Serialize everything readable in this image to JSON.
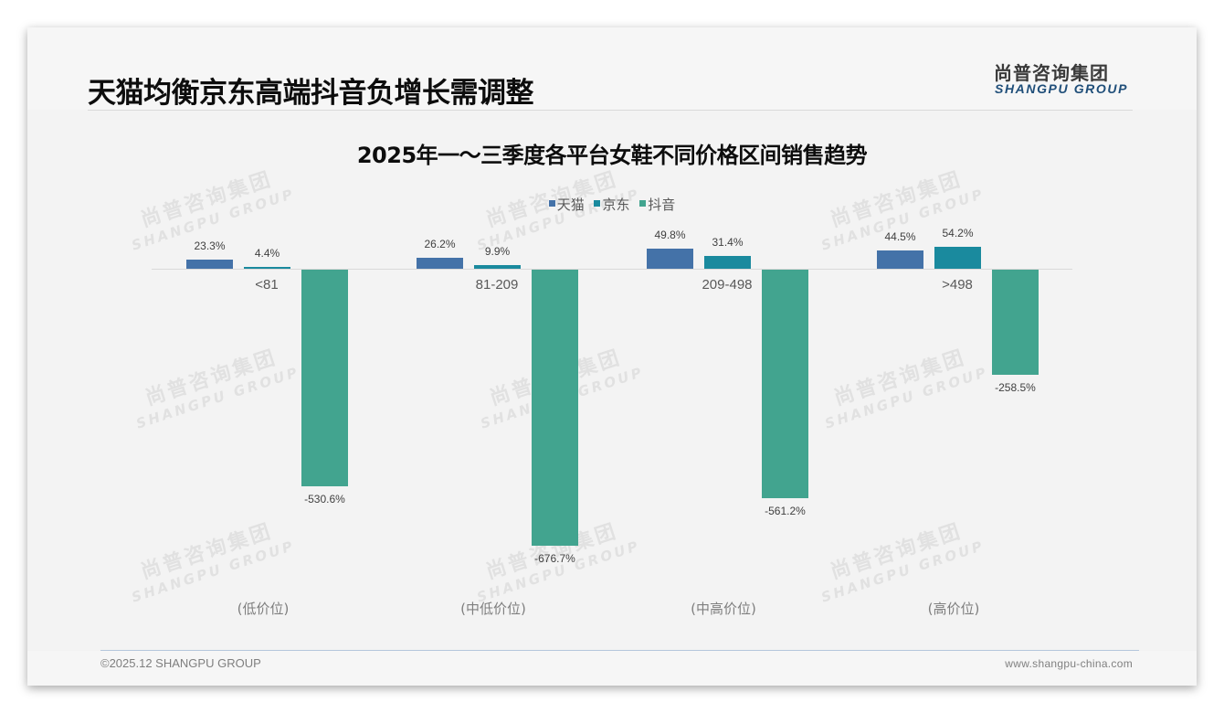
{
  "header": {
    "title": "天猫均衡京东高端抖音负增长需调整",
    "logo_cn": "尚普咨询集团",
    "logo_en": "SHANGPU GROUP"
  },
  "watermark": {
    "cn": "尚普咨询集团",
    "en": "SHANGPU GROUP"
  },
  "footer": {
    "copyright": "©2025.12 SHANGPU GROUP",
    "website": "www.shangpu-china.com"
  },
  "legend": [
    {
      "label": "天猫",
      "color": "#4472a8"
    },
    {
      "label": "京东",
      "color": "#1a8a9e"
    },
    {
      "label": "抖音",
      "color": "#42a48f"
    }
  ],
  "tiers": [
    "(低价位)",
    "(中低价位)",
    "(中高价位)",
    "(高价位)"
  ],
  "chart_data": {
    "type": "bar",
    "title": "2025年一～三季度各平台女鞋不同价格区间销售趋势",
    "categories": [
      "<81",
      "81-209",
      "209-498",
      ">498"
    ],
    "category_groups": [
      "(低价位)",
      "(中低价位)",
      "(中高价位)",
      "(高价位)"
    ],
    "series": [
      {
        "name": "天猫",
        "color": "#4472a8",
        "values": [
          23.3,
          26.2,
          49.8,
          44.5
        ],
        "labels": [
          "23.3%",
          "26.2%",
          "49.8%",
          "44.5%"
        ]
      },
      {
        "name": "京东",
        "color": "#1a8a9e",
        "values": [
          4.4,
          9.9,
          31.4,
          54.2
        ],
        "labels": [
          "4.4%",
          "9.9%",
          "31.4%",
          "54.2%"
        ]
      },
      {
        "name": "抖音",
        "color": "#42a48f",
        "values": [
          -530.6,
          -676.7,
          -561.2,
          -258.5
        ],
        "labels": [
          "-530.6%",
          "-676.7%",
          "-561.2%",
          "-258.5%"
        ]
      }
    ],
    "xlabel": "",
    "ylabel": "",
    "unit": "%",
    "legend_position": "top",
    "grid": false
  }
}
